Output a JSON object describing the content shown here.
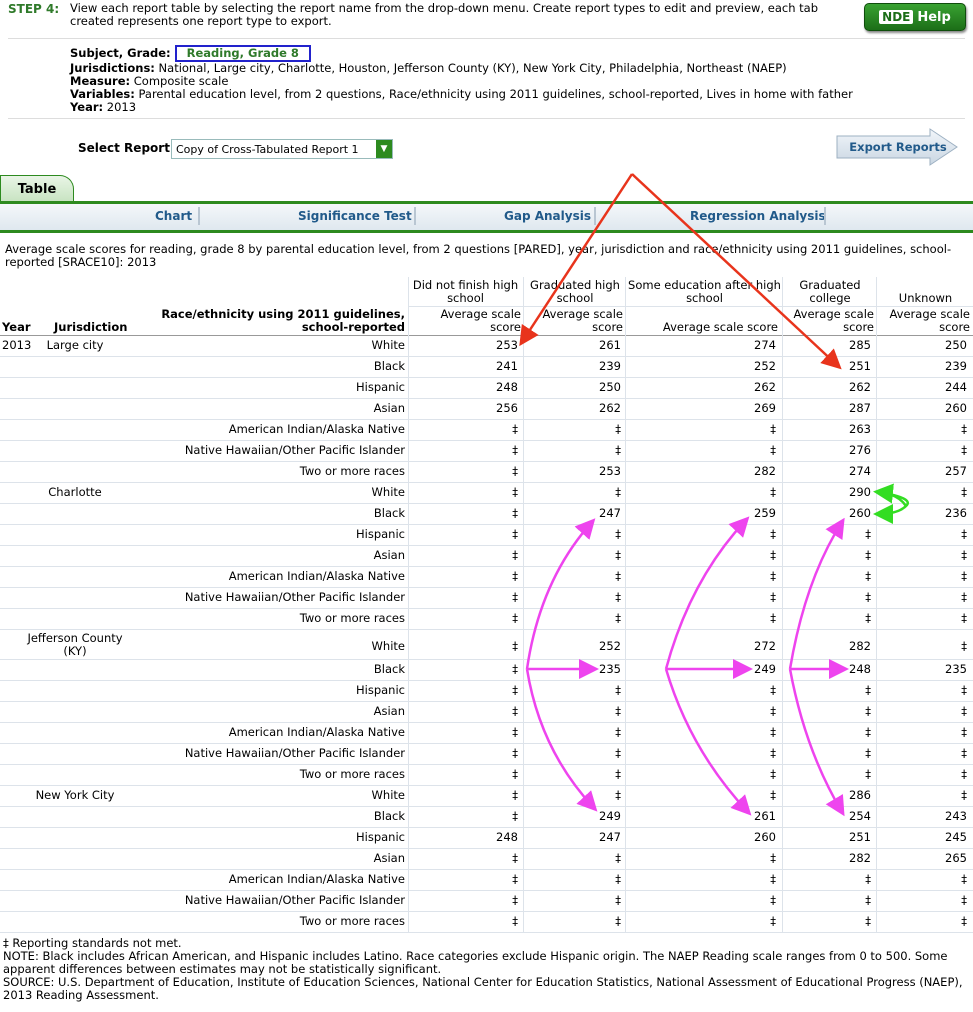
{
  "step": {
    "label": "STEP 4:",
    "text": "View each report table by selecting the report name from the drop-down menu. Create report types to edit and preview, each tab created represents one report type to export."
  },
  "help_button": {
    "prefix": "NDE",
    "label": "Help"
  },
  "meta": {
    "subject_label": "Subject, Grade:",
    "subject_value": "Reading, Grade 8",
    "jurisdictions_label": "Jurisdictions:",
    "jurisdictions_value": "National, Large city, Charlotte, Houston, Jefferson County (KY), New York City, Philadelphia, Northeast (NAEP)",
    "measure_label": "Measure:",
    "measure_value": "Composite scale",
    "variables_label": "Variables:",
    "variables_value": "Parental education level, from 2 questions, Race/ethnicity using 2011 guidelines, school-reported, Lives in home with father",
    "year_label": "Year:",
    "year_value": "2013"
  },
  "select_report": {
    "label": "Select Report:",
    "value": "Copy of Cross-Tabulated Report 1"
  },
  "export_button": {
    "label": "Export Reports"
  },
  "tabs": {
    "active": "Table",
    "sub": [
      "Chart",
      "Significance Test",
      "Gap Analysis",
      "Regression Analysis"
    ]
  },
  "description": "Average scale scores for reading, grade 8 by parental education level, from 2 questions [PARED], year, jurisdiction and race/ethnicity using 2011 guidelines, school-reported [SRACE10]: 2013",
  "table": {
    "headers": {
      "year": "Year",
      "jurisdiction": "Jurisdiction",
      "race": "Race/ethnicity using 2011 guidelines, school-reported",
      "groups": [
        "Did not finish high school",
        "Graduated high school",
        "Some education after high school",
        "Graduated college",
        "Unknown"
      ],
      "stat": "Average scale score"
    },
    "rows": [
      {
        "year": "2013",
        "jur": "Large city",
        "race": "White",
        "v": [
          "253",
          "261",
          "274",
          "285",
          "250"
        ]
      },
      {
        "year": "",
        "jur": "",
        "race": "Black",
        "v": [
          "241",
          "239",
          "252",
          "251",
          "239"
        ]
      },
      {
        "year": "",
        "jur": "",
        "race": "Hispanic",
        "v": [
          "248",
          "250",
          "262",
          "262",
          "244"
        ]
      },
      {
        "year": "",
        "jur": "",
        "race": "Asian",
        "v": [
          "256",
          "262",
          "269",
          "287",
          "260"
        ]
      },
      {
        "year": "",
        "jur": "",
        "race": "American Indian/Alaska Native",
        "v": [
          "‡",
          "‡",
          "‡",
          "263",
          "‡"
        ]
      },
      {
        "year": "",
        "jur": "",
        "race": "Native Hawaiian/Other Pacific Islander",
        "v": [
          "‡",
          "‡",
          "‡",
          "276",
          "‡"
        ]
      },
      {
        "year": "",
        "jur": "",
        "race": "Two or more races",
        "v": [
          "‡",
          "253",
          "282",
          "274",
          "257"
        ]
      },
      {
        "year": "",
        "jur": "Charlotte",
        "race": "White",
        "v": [
          "‡",
          "‡",
          "‡",
          "290",
          "‡"
        ]
      },
      {
        "year": "",
        "jur": "",
        "race": "Black",
        "v": [
          "‡",
          "247",
          "259",
          "260",
          "236"
        ]
      },
      {
        "year": "",
        "jur": "",
        "race": "Hispanic",
        "v": [
          "‡",
          "‡",
          "‡",
          "‡",
          "‡"
        ]
      },
      {
        "year": "",
        "jur": "",
        "race": "Asian",
        "v": [
          "‡",
          "‡",
          "‡",
          "‡",
          "‡"
        ]
      },
      {
        "year": "",
        "jur": "",
        "race": "American Indian/Alaska Native",
        "v": [
          "‡",
          "‡",
          "‡",
          "‡",
          "‡"
        ]
      },
      {
        "year": "",
        "jur": "",
        "race": "Native Hawaiian/Other Pacific Islander",
        "v": [
          "‡",
          "‡",
          "‡",
          "‡",
          "‡"
        ]
      },
      {
        "year": "",
        "jur": "",
        "race": "Two or more races",
        "v": [
          "‡",
          "‡",
          "‡",
          "‡",
          "‡"
        ]
      },
      {
        "year": "",
        "jur": "Jefferson County (KY)",
        "race": "White",
        "v": [
          "‡",
          "252",
          "272",
          "282",
          "‡"
        ]
      },
      {
        "year": "",
        "jur": "",
        "race": "Black",
        "v": [
          "‡",
          "235",
          "249",
          "248",
          "235"
        ]
      },
      {
        "year": "",
        "jur": "",
        "race": "Hispanic",
        "v": [
          "‡",
          "‡",
          "‡",
          "‡",
          "‡"
        ]
      },
      {
        "year": "",
        "jur": "",
        "race": "Asian",
        "v": [
          "‡",
          "‡",
          "‡",
          "‡",
          "‡"
        ]
      },
      {
        "year": "",
        "jur": "",
        "race": "American Indian/Alaska Native",
        "v": [
          "‡",
          "‡",
          "‡",
          "‡",
          "‡"
        ]
      },
      {
        "year": "",
        "jur": "",
        "race": "Native Hawaiian/Other Pacific Islander",
        "v": [
          "‡",
          "‡",
          "‡",
          "‡",
          "‡"
        ]
      },
      {
        "year": "",
        "jur": "",
        "race": "Two or more races",
        "v": [
          "‡",
          "‡",
          "‡",
          "‡",
          "‡"
        ]
      },
      {
        "year": "",
        "jur": "New York City",
        "race": "White",
        "v": [
          "‡",
          "‡",
          "‡",
          "286",
          "‡"
        ]
      },
      {
        "year": "",
        "jur": "",
        "race": "Black",
        "v": [
          "‡",
          "249",
          "261",
          "254",
          "243"
        ]
      },
      {
        "year": "",
        "jur": "",
        "race": "Hispanic",
        "v": [
          "248",
          "247",
          "260",
          "251",
          "245"
        ]
      },
      {
        "year": "",
        "jur": "",
        "race": "Asian",
        "v": [
          "‡",
          "‡",
          "‡",
          "282",
          "265"
        ]
      },
      {
        "year": "",
        "jur": "",
        "race": "American Indian/Alaska Native",
        "v": [
          "‡",
          "‡",
          "‡",
          "‡",
          "‡"
        ]
      },
      {
        "year": "",
        "jur": "",
        "race": "Native Hawaiian/Other Pacific Islander",
        "v": [
          "‡",
          "‡",
          "‡",
          "‡",
          "‡"
        ]
      },
      {
        "year": "",
        "jur": "",
        "race": "Two or more races",
        "v": [
          "‡",
          "‡",
          "‡",
          "‡",
          "‡"
        ]
      }
    ]
  },
  "footer": {
    "legend": "‡ Reporting standards not met.",
    "note": "NOTE: Black includes African American, and Hispanic includes Latino. Race categories exclude Hispanic origin. The NAEP Reading scale ranges from 0 to 500. Some apparent differences between estimates may not be statistically significant.",
    "source": "SOURCE: U.S. Department of Education, Institute of Education Sciences, National Center for Education Statistics, National Assessment of Educational Progress (NAEP), 2013 Reading Assessment."
  },
  "colors": {
    "accent": "#2d8a1f",
    "arrow_red": "#e8341c",
    "arrow_magenta": "#ee44ee",
    "arrow_green": "#33dd22",
    "highlight_box": "#2222cc"
  }
}
